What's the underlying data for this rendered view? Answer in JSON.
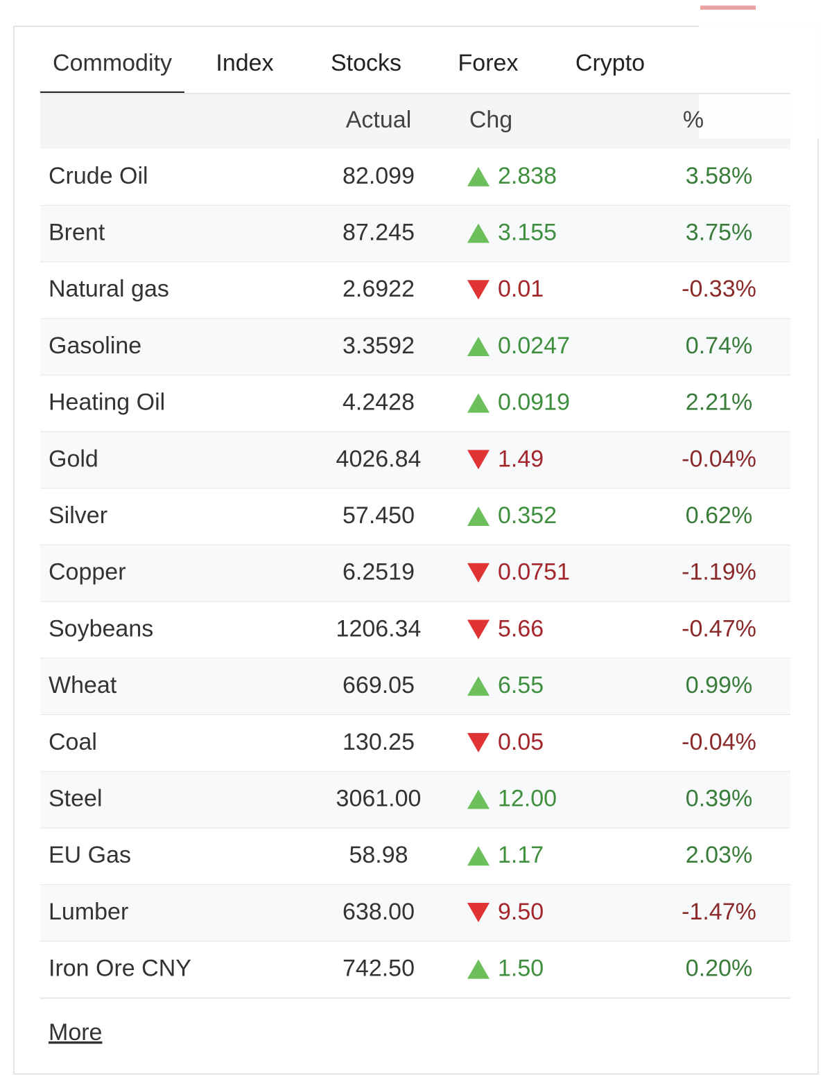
{
  "tabs": [
    "Commodity",
    "Index",
    "Stocks",
    "Forex",
    "Crypto"
  ],
  "active_tab": 0,
  "table": {
    "headers": [
      "Actual",
      "Chg",
      "%"
    ],
    "rows": [
      {
        "name": "Crude Oil",
        "actual": "82.099",
        "chg": "2.838",
        "pct": "3.58%",
        "direction": "up"
      },
      {
        "name": "Brent",
        "actual": "87.245",
        "chg": "3.155",
        "pct": "3.75%",
        "direction": "up"
      },
      {
        "name": "Natural gas",
        "actual": "2.6922",
        "chg": "0.01",
        "pct": "-0.33%",
        "direction": "down"
      },
      {
        "name": "Gasoline",
        "actual": "3.3592",
        "chg": "0.0247",
        "pct": "0.74%",
        "direction": "up"
      },
      {
        "name": "Heating Oil",
        "actual": "4.2428",
        "chg": "0.0919",
        "pct": "2.21%",
        "direction": "up"
      },
      {
        "name": "Gold",
        "actual": "4026.84",
        "chg": "1.49",
        "pct": "-0.04%",
        "direction": "down"
      },
      {
        "name": "Silver",
        "actual": "57.450",
        "chg": "0.352",
        "pct": "0.62%",
        "direction": "up"
      },
      {
        "name": "Copper",
        "actual": "6.2519",
        "chg": "0.0751",
        "pct": "-1.19%",
        "direction": "down"
      },
      {
        "name": "Soybeans",
        "actual": "1206.34",
        "chg": "5.66",
        "pct": "-0.47%",
        "direction": "down"
      },
      {
        "name": "Wheat",
        "actual": "669.05",
        "chg": "6.55",
        "pct": "0.99%",
        "direction": "up"
      },
      {
        "name": "Coal",
        "actual": "130.25",
        "chg": "0.05",
        "pct": "-0.04%",
        "direction": "down"
      },
      {
        "name": "Steel",
        "actual": "3061.00",
        "chg": "12.00",
        "pct": "0.39%",
        "direction": "up"
      },
      {
        "name": "EU Gas",
        "actual": "58.98",
        "chg": "1.17",
        "pct": "2.03%",
        "direction": "up"
      },
      {
        "name": "Lumber",
        "actual": "638.00",
        "chg": "9.50",
        "pct": "-1.47%",
        "direction": "down"
      },
      {
        "name": "Iron Ore CNY",
        "actual": "742.50",
        "chg": "1.50",
        "pct": "0.20%",
        "direction": "up"
      }
    ]
  },
  "more_link": "More"
}
